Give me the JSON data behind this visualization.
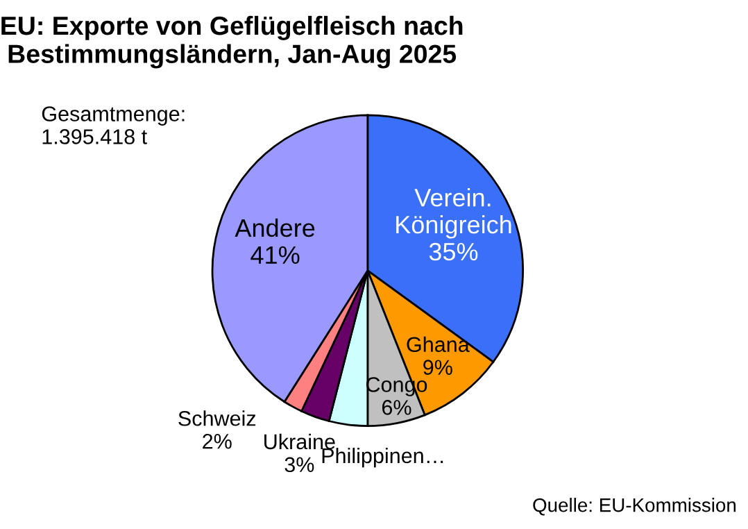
{
  "chart_data": {
    "type": "pie",
    "title": "EU: Exporte von Geflügelfleisch nach\nBestimmungsländern, Jan-Aug 2025",
    "categories": [
      "Verein.\nKönigreich",
      "Ghana",
      "Congo",
      "Philippinen…",
      "Ukraine",
      "Schweiz",
      "Andere"
    ],
    "values": [
      35,
      9,
      6,
      4,
      3,
      2,
      41
    ],
    "value_labels": [
      "35%",
      "9%",
      "6%",
      null,
      "3%",
      "2%",
      "41%"
    ],
    "colors": [
      "#3a6ff7",
      "#ff9900",
      "#c0c0c0",
      "#ccffff",
      "#660066",
      "#ff8080",
      "#9999ff"
    ],
    "annotations": [
      "Gesamtmenge:\n1.395.418 t",
      "Quelle: EU-Kommission"
    ]
  }
}
